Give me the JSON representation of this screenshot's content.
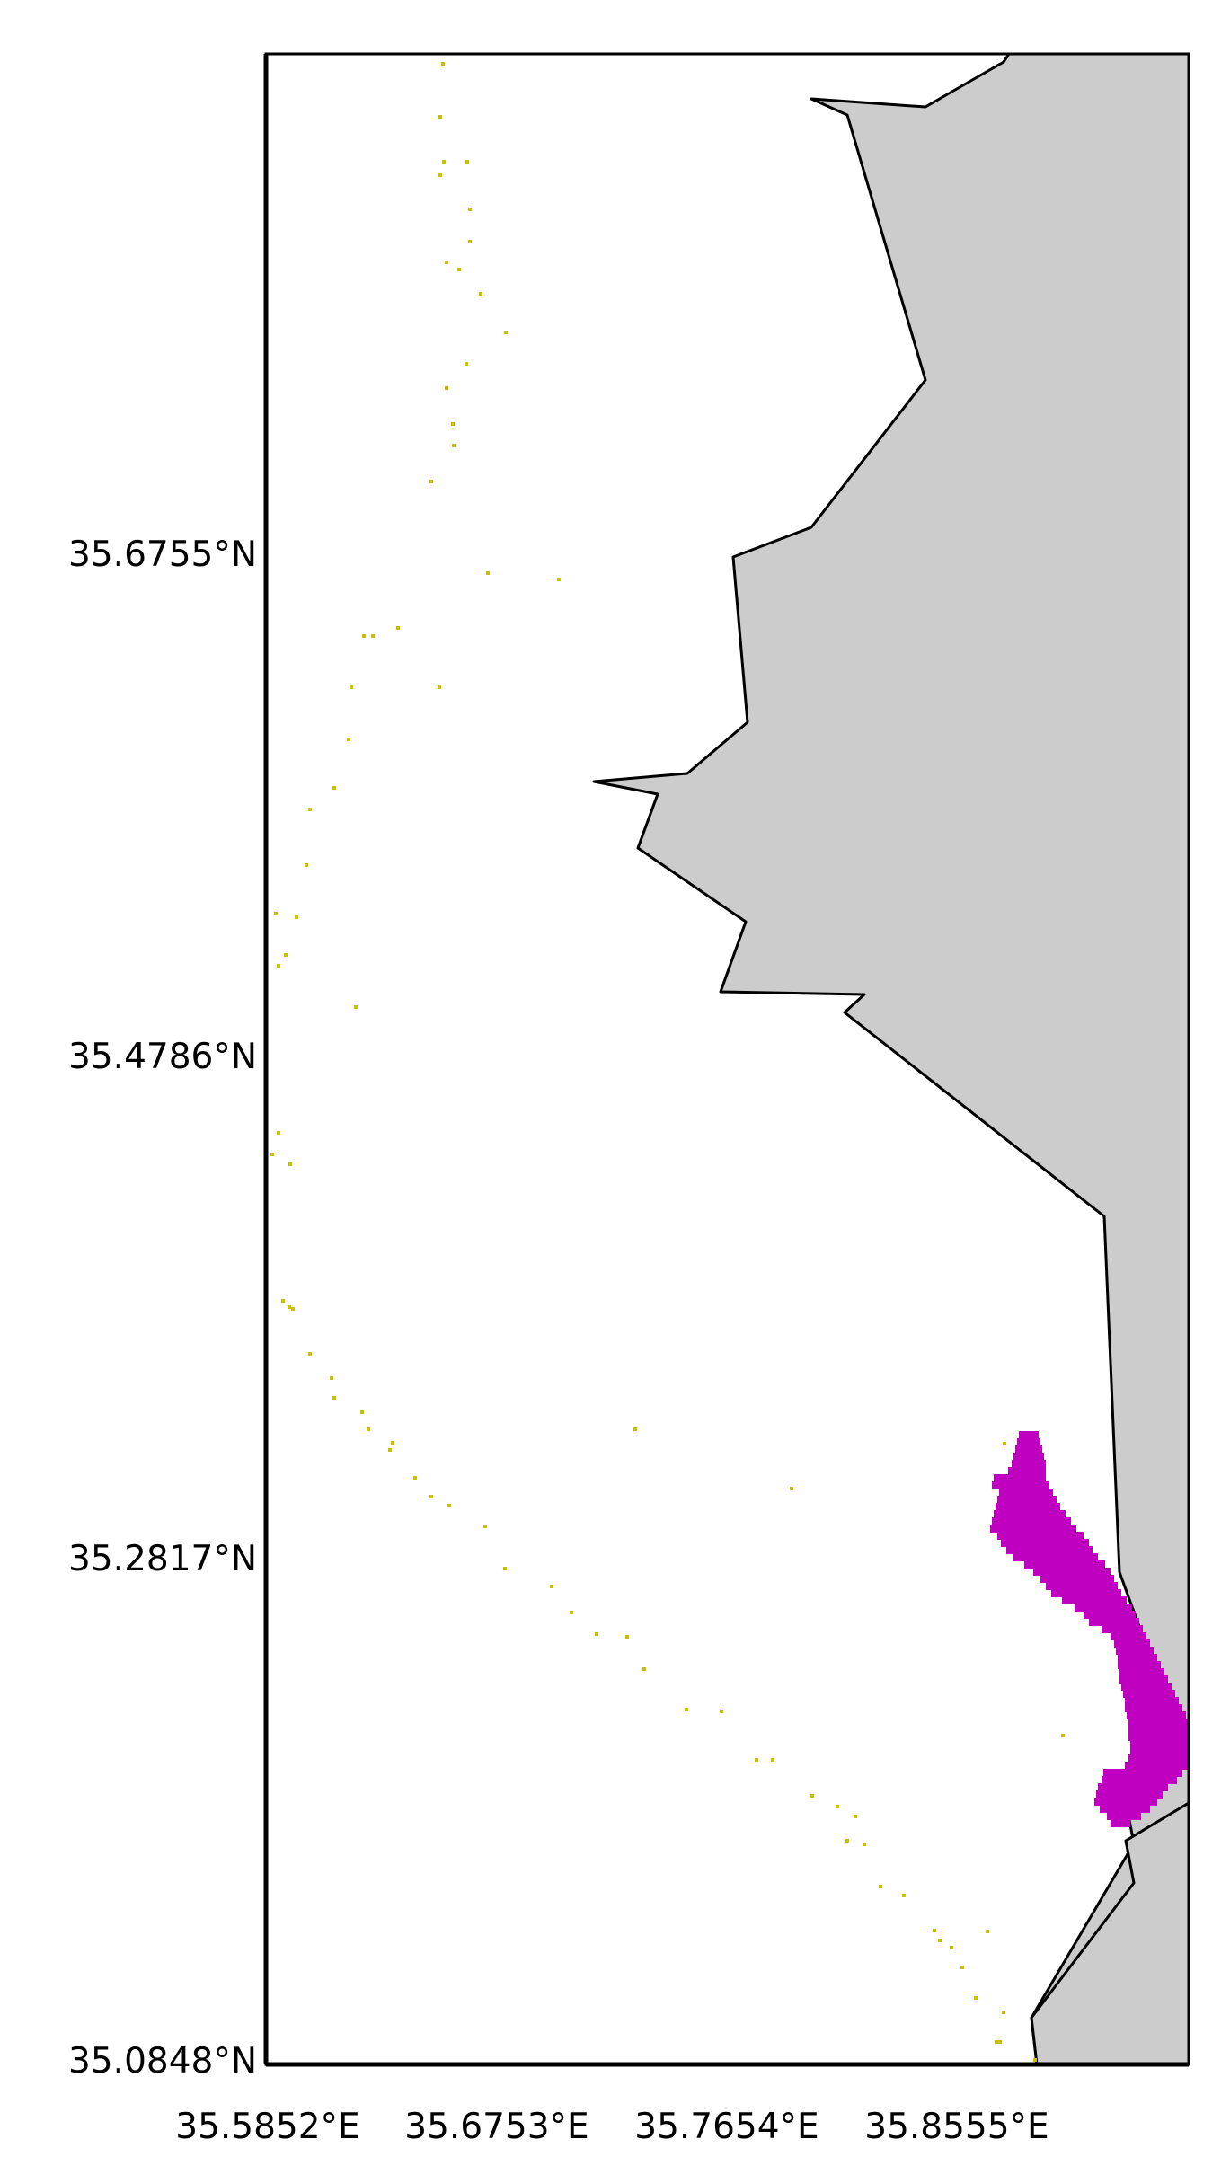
{
  "map": {
    "x_tick_labels": [
      "35.5852°E",
      "35.6753°E",
      "35.7654°E",
      "35.8555°E"
    ],
    "y_tick_labels": [
      "35.6755°N",
      "35.4786°N",
      "35.2817°N",
      "35.0848°N"
    ],
    "colors": {
      "land": "#cccccc",
      "coastline": "#000000",
      "sparse_points": "#c8c000",
      "dense_cluster": "#c000c0",
      "frame": "#000000",
      "background": "#ffffff"
    },
    "layers": [
      {
        "name": "land-polygon",
        "kind": "polygon"
      },
      {
        "name": "sparse-track-points",
        "kind": "points"
      },
      {
        "name": "dense-cluster",
        "kind": "raster-cells"
      }
    ]
  }
}
